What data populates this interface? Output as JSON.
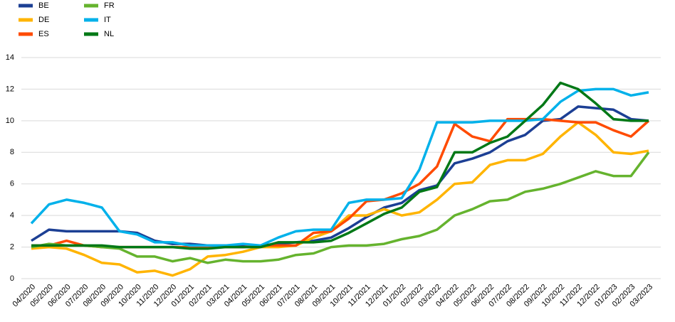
{
  "chart_data": {
    "type": "line",
    "categories": [
      "04/2020",
      "05/2020",
      "06/2020",
      "07/2020",
      "08/2020",
      "09/2020",
      "10/2020",
      "11/2020",
      "12/2020",
      "01/2021",
      "02/2021",
      "03/2021",
      "04/2021",
      "05/2021",
      "06/2021",
      "07/2021",
      "08/2021",
      "09/2021",
      "10/2021",
      "11/2021",
      "12/2021",
      "01/2022",
      "02/2022",
      "03/2022",
      "04/2022",
      "05/2022",
      "06/2022",
      "07/2022",
      "08/2022",
      "09/2022",
      "10/2022",
      "11/2022",
      "12/2022",
      "01/2023",
      "02/2023",
      "03/2023"
    ],
    "series": [
      {
        "name": "BE",
        "color": "#1c3f94",
        "values": [
          2.4,
          3.1,
          3.0,
          3.0,
          3.0,
          3.0,
          2.9,
          2.4,
          2.2,
          2.2,
          2.1,
          2.1,
          2.1,
          2.1,
          2.2,
          2.3,
          2.4,
          2.6,
          3.2,
          3.9,
          4.5,
          4.8,
          5.6,
          5.9,
          7.3,
          7.6,
          8.0,
          8.7,
          9.1,
          10.0,
          10.1,
          10.9,
          10.8,
          10.7,
          10.1,
          10.0
        ]
      },
      {
        "name": "DE",
        "color": "#ffb400",
        "values": [
          1.9,
          2.0,
          1.9,
          1.5,
          1.0,
          0.9,
          0.4,
          0.5,
          0.2,
          0.6,
          1.4,
          1.5,
          1.7,
          2.0,
          2.0,
          2.1,
          2.6,
          3.0,
          4.0,
          4.0,
          4.4,
          4.0,
          4.2,
          5.0,
          6.0,
          6.1,
          7.2,
          7.5,
          7.5,
          7.9,
          9.0,
          9.9,
          9.1,
          8.0,
          7.9,
          8.1
        ]
      },
      {
        "name": "ES",
        "color": "#ff4b00",
        "values": [
          2.1,
          2.1,
          2.4,
          2.1,
          2.0,
          2.0,
          2.0,
          2.0,
          2.0,
          2.0,
          2.0,
          2.0,
          2.0,
          2.1,
          2.1,
          2.1,
          2.9,
          3.0,
          3.8,
          4.9,
          5.0,
          5.4,
          6.0,
          7.1,
          9.8,
          9.0,
          8.7,
          10.1,
          10.1,
          10.1,
          10.0,
          9.9,
          9.9,
          9.4,
          9.0,
          10.0
        ]
      },
      {
        "name": "FR",
        "color": "#65b32e",
        "values": [
          2.0,
          2.2,
          2.1,
          2.1,
          2.0,
          1.9,
          1.4,
          1.4,
          1.1,
          1.3,
          1.0,
          1.2,
          1.1,
          1.1,
          1.2,
          1.5,
          1.6,
          2.0,
          2.1,
          2.1,
          2.2,
          2.5,
          2.7,
          3.1,
          4.0,
          4.4,
          4.9,
          5.0,
          5.5,
          5.7,
          6.0,
          6.4,
          6.8,
          6.5,
          6.5,
          8.0
        ]
      },
      {
        "name": "IT",
        "color": "#00b1ea",
        "values": [
          3.5,
          4.7,
          5.0,
          4.8,
          4.5,
          3.0,
          2.8,
          2.3,
          2.3,
          2.1,
          2.1,
          2.1,
          2.2,
          2.1,
          2.6,
          3.0,
          3.1,
          3.1,
          4.8,
          5.0,
          5.0,
          5.1,
          6.9,
          9.9,
          9.9,
          9.9,
          10.0,
          10.0,
          10.0,
          10.1,
          11.2,
          11.9,
          12.0,
          12.0,
          11.6,
          11.8
        ]
      },
      {
        "name": "NL",
        "color": "#007816",
        "values": [
          2.1,
          2.1,
          2.1,
          2.1,
          2.1,
          2.0,
          2.0,
          2.0,
          2.0,
          1.9,
          1.9,
          2.0,
          2.0,
          2.0,
          2.3,
          2.3,
          2.3,
          2.4,
          2.9,
          3.5,
          4.1,
          4.5,
          5.5,
          5.8,
          8.0,
          8.0,
          8.6,
          9.0,
          10.0,
          11.0,
          12.4,
          12.0,
          11.1,
          10.1,
          10.0,
          10.0
        ]
      }
    ],
    "ylim": [
      0,
      14
    ],
    "yticks": [
      0,
      2,
      4,
      6,
      8,
      10,
      12,
      14
    ],
    "grid": true
  }
}
